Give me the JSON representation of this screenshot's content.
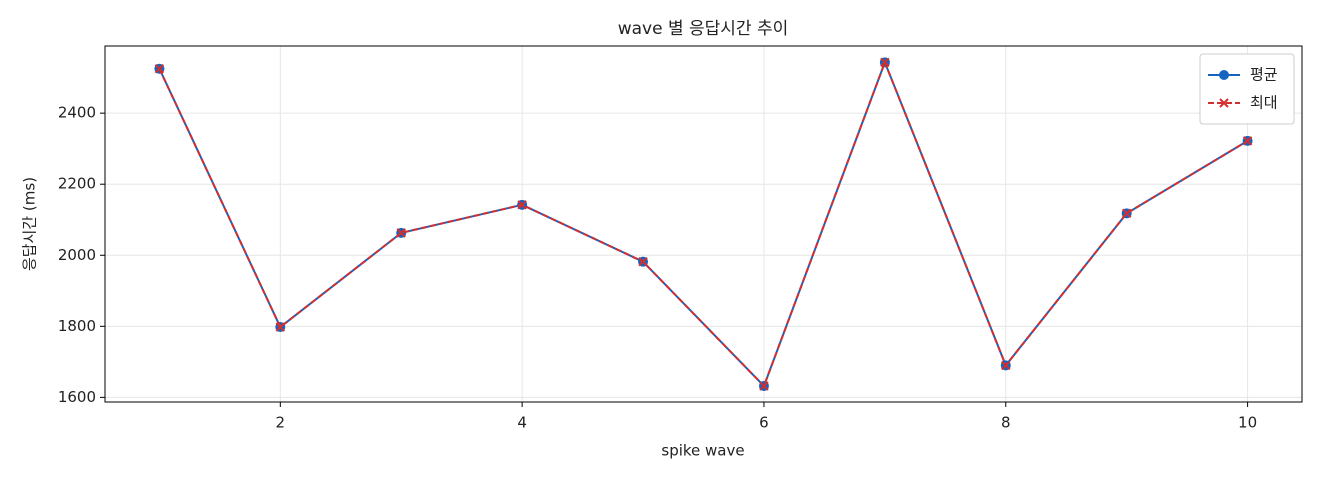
{
  "chart_data": {
    "type": "line",
    "title": "wave 별 응답시간 추이",
    "x_label": "spike wave",
    "y_label": "응답시간 (ms)",
    "x": [
      1,
      2,
      3,
      4,
      5,
      6,
      7,
      8,
      9,
      10
    ],
    "series": [
      {
        "name": "평균",
        "color": "#1565c0",
        "marker": "circle",
        "dash": "solid",
        "values": [
          2525,
          1798,
          2063,
          2142,
          1982,
          1632,
          2543,
          1690,
          2118,
          2322
        ]
      },
      {
        "name": "최대",
        "color": "#d32f2f",
        "marker": "x",
        "dash": "dashed",
        "values": [
          2525,
          1798,
          2063,
          2142,
          1982,
          1632,
          2543,
          1690,
          2118,
          2322
        ]
      }
    ],
    "xlim": [
      0.55,
      10.45
    ],
    "xticks": [
      2,
      4,
      6,
      8,
      10
    ],
    "ylim": [
      1587,
      2589
    ],
    "yticks": [
      1600,
      1800,
      2000,
      2200,
      2400
    ],
    "grid": true,
    "legend": "upper right"
  }
}
